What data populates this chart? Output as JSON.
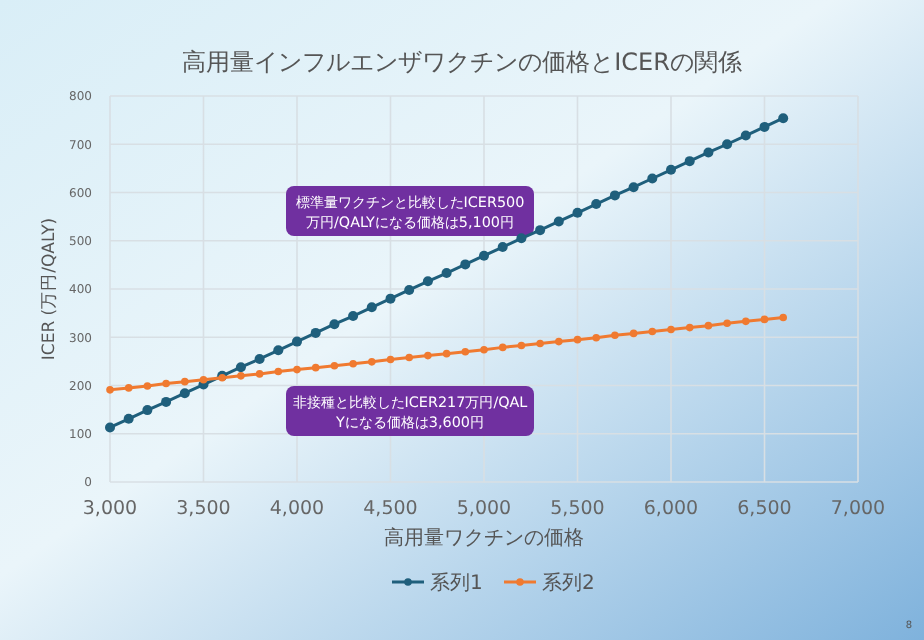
{
  "chart_data": {
    "type": "line",
    "title": "高用量インフルエンザワクチンの価格とICERの関係",
    "xlabel": "高用量ワクチンの価格",
    "ylabel": "ICER (万円/QALY)",
    "x": [
      3000,
      3100,
      3200,
      3300,
      3400,
      3500,
      3600,
      3700,
      3800,
      3900,
      4000,
      4100,
      4200,
      4300,
      4400,
      4500,
      4600,
      4700,
      4800,
      4900,
      5000,
      5100,
      5200,
      5300,
      5400,
      5500,
      5600,
      5700,
      5800,
      5900,
      6000,
      6100,
      6200,
      6300,
      6400,
      6500,
      6600
    ],
    "series": [
      {
        "name": "系列1",
        "color": "#1f5f7c",
        "values": [
          113,
          131,
          149,
          166,
          184,
          202,
          220,
          238,
          255,
          273,
          291,
          309,
          327,
          344,
          362,
          380,
          398,
          416,
          433,
          451,
          469,
          487,
          505,
          522,
          540,
          558,
          576,
          594,
          611,
          629,
          647,
          665,
          683,
          700,
          718,
          736,
          754
        ]
      },
      {
        "name": "系列2",
        "color": "#f07a30",
        "values": [
          191,
          195,
          199,
          204,
          208,
          212,
          216,
          220,
          224,
          229,
          233,
          237,
          241,
          245,
          249,
          254,
          258,
          262,
          266,
          270,
          274,
          279,
          283,
          287,
          291,
          295,
          299,
          304,
          308,
          312,
          316,
          320,
          324,
          329,
          333,
          337,
          341
        ]
      }
    ],
    "xlim": [
      3000,
      7000
    ],
    "xticks": [
      {
        "value": 3000,
        "label": "3,000"
      },
      {
        "value": 3500,
        "label": "3,500"
      },
      {
        "value": 4000,
        "label": "4,000"
      },
      {
        "value": 4500,
        "label": "4,500"
      },
      {
        "value": 5000,
        "label": "5,000"
      },
      {
        "value": 5500,
        "label": "5,500"
      },
      {
        "value": 6000,
        "label": "6,000"
      },
      {
        "value": 6500,
        "label": "6,500"
      },
      {
        "value": 7000,
        "label": "7,000"
      }
    ],
    "ylim": [
      0,
      800
    ],
    "yticks": [
      0,
      100,
      200,
      300,
      400,
      500,
      600,
      700,
      800
    ],
    "annotations": [
      "標準量ワクチンと比較したICER500万円/QALYになる価格は5,100円",
      "非接種と比較したICER217万円/QALYになる価格は3,600円",
      "8"
    ],
    "grid": true,
    "legend": "bottom",
    "marker": "circle",
    "line_style": "solid"
  }
}
